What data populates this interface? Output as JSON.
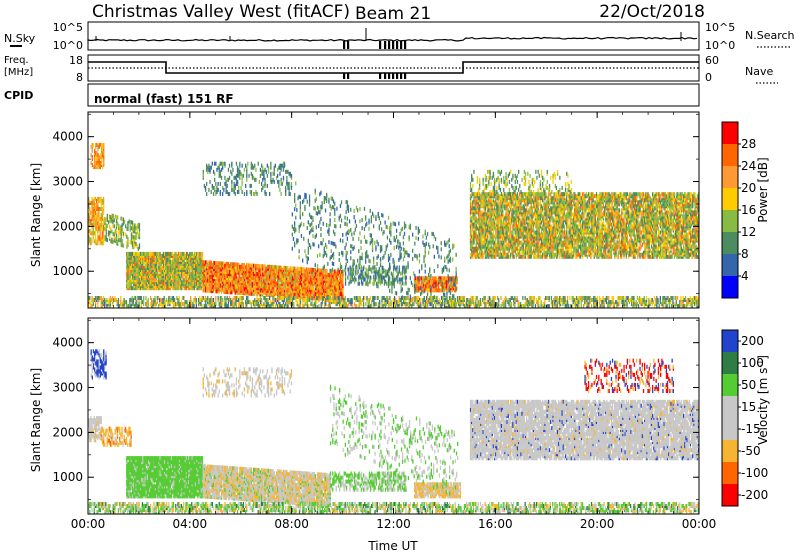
{
  "header": {
    "title": "Christmas Valley West (fitACF)",
    "beam": "Beam 21",
    "date": "22/Oct/2018"
  },
  "top_panels": {
    "nsky_label": "N.Sky",
    "nsearch_label": "N.Search",
    "nsky_ticks": [
      "10^5",
      "10^0"
    ],
    "nsearch_ticks": [
      "10^5",
      "10^0"
    ],
    "freq_label": [
      "Freq.",
      "[MHz]"
    ],
    "freq_ticks": [
      "18",
      "8"
    ],
    "nave_label": "Nave",
    "nave_ticks": [
      "60",
      "0"
    ],
    "cpid_label": "CPID",
    "cpid_text": "normal (fast) 151 RF"
  },
  "chart_data": [
    {
      "type": "heatmap",
      "title": "",
      "xlabel": "",
      "ylabel": "Slant Range [km]",
      "xlim": [
        0,
        24
      ],
      "ylim": [
        180,
        4550
      ],
      "x_tick_labels": [
        "00:00",
        "04:00",
        "08:00",
        "12:00",
        "16:00",
        "20:00",
        "00:00"
      ],
      "y_tick_labels": [
        "1000",
        "2000",
        "3000",
        "4000"
      ],
      "colorbar": {
        "label": "Power [dB]",
        "ticks": [
          "28",
          "24",
          "20",
          "16",
          "12",
          "8",
          "4"
        ],
        "colors": [
          "#ff0000",
          "#ff6600",
          "#ff9933",
          "#ffcc00",
          "#88bb44",
          "#4c8c60",
          "#3366aa",
          "#0000ff"
        ]
      }
    },
    {
      "type": "heatmap",
      "title": "",
      "xlabel": "Time UT",
      "ylabel": "Slant Range [km]",
      "xlim": [
        0,
        24
      ],
      "ylim": [
        180,
        4550
      ],
      "x_tick_labels": [
        "00:00",
        "04:00",
        "08:00",
        "12:00",
        "16:00",
        "20:00",
        "00:00"
      ],
      "y_tick_labels": [
        "1000",
        "2000",
        "3000",
        "4000"
      ],
      "colorbar": {
        "label": "Velocity [m s",
        "label_sup": "-1",
        "label_end": "]",
        "ticks": [
          "200",
          "100",
          "50",
          "15",
          "-15",
          "-50",
          "-100",
          "-200"
        ],
        "colors": [
          "#2244cc",
          "#2e7d44",
          "#55cc33",
          "#c8c8c8",
          "#c8c8c8",
          "#f5b533",
          "#ff6600",
          "#ff0000"
        ]
      }
    }
  ]
}
